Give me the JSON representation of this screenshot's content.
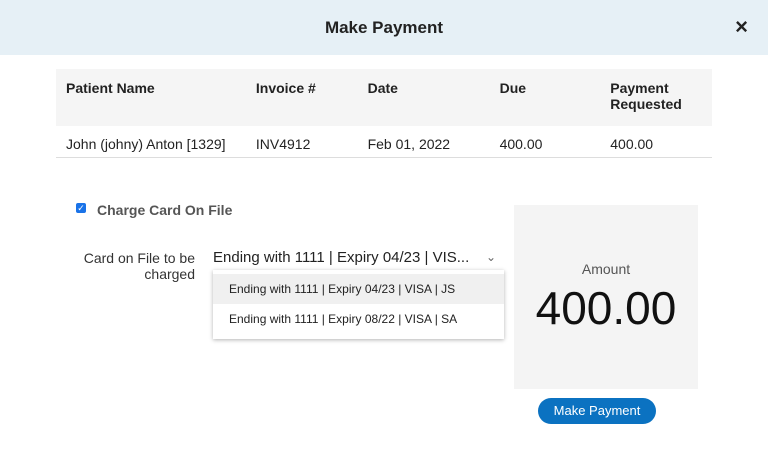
{
  "header": {
    "title": "Make Payment",
    "close_icon": "×"
  },
  "table": {
    "columns": [
      "Patient Name",
      "Invoice #",
      "Date",
      "Due",
      "Payment Requested"
    ],
    "rows": [
      [
        "John (johny) Anton [1329]",
        "INV4912",
        "Feb 01, 2022",
        "400.00",
        "400.00"
      ]
    ]
  },
  "charge_card": {
    "checked": true,
    "label": "Charge Card On File"
  },
  "card_select": {
    "label": "Card on File to be charged",
    "value": "Ending with 1111 | Expiry 04/23 | VIS...",
    "chevron": "⌄",
    "options": [
      "Ending with 1111 | Expiry 04/23 | VISA | JS",
      "Ending with 1111 | Expiry 08/22 | VISA | SA"
    ]
  },
  "amount": {
    "label": "Amount",
    "value": "400.00"
  },
  "submit_label": "Make Payment"
}
